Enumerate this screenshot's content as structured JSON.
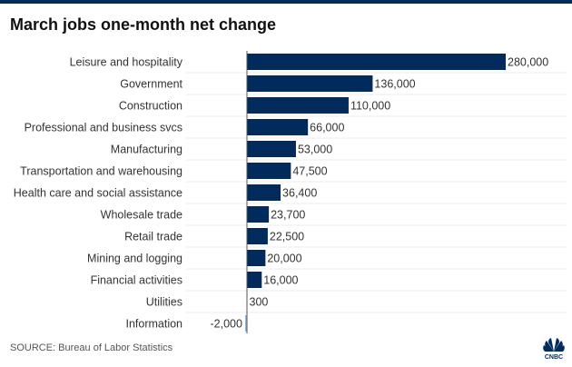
{
  "chart_data": {
    "type": "bar",
    "orientation": "horizontal",
    "title": "March jobs one-month net change",
    "categories": [
      "Leisure and hospitality",
      "Government",
      "Construction",
      "Professional and business svcs",
      "Manufacturing",
      "Transportation and warehousing",
      "Health care and social assistance",
      "Wholesale trade",
      "Retail trade",
      "Mining and logging",
      "Financial activities",
      "Utilities",
      "Information"
    ],
    "values": [
      280000,
      136000,
      110000,
      66000,
      53000,
      47500,
      36400,
      23700,
      22500,
      20000,
      16000,
      300,
      -2000
    ],
    "data_labels": [
      "280,000",
      "136,000",
      "110,000",
      "66,000",
      "53,000",
      "47,500",
      "36,400",
      "23,700",
      "22,500",
      "20,000",
      "16,000",
      "300",
      "-2,000"
    ],
    "xlim": [
      0,
      280000
    ],
    "grid": true,
    "colors": {
      "positive": "#002b5c",
      "negative": "#9ab4d8",
      "grid": "#eeeeee",
      "axis": "#555555"
    }
  },
  "source": "SOURCE: Bureau of Labor Statistics",
  "logo": "CNBC",
  "colors": {
    "topbar": "#002b5c"
  }
}
